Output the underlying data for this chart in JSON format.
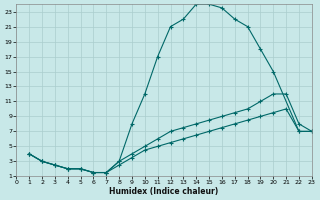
{
  "xlabel": "Humidex (Indice chaleur)",
  "xlim": [
    0,
    23
  ],
  "ylim": [
    1,
    24
  ],
  "xticks": [
    0,
    1,
    2,
    3,
    4,
    5,
    6,
    7,
    8,
    9,
    10,
    11,
    12,
    13,
    14,
    15,
    16,
    17,
    18,
    19,
    20,
    21,
    22,
    23
  ],
  "yticks": [
    1,
    3,
    5,
    7,
    9,
    11,
    13,
    15,
    17,
    19,
    21,
    23
  ],
  "bg_color": "#c8e8e8",
  "grid_color": "#aacece",
  "line_color": "#006868",
  "line1_x": [
    1,
    2,
    3,
    4,
    5,
    6,
    7,
    8,
    9,
    10,
    11,
    12,
    13,
    14,
    15,
    16,
    17,
    18,
    19,
    20,
    22,
    23
  ],
  "line1_y": [
    4,
    3,
    2.5,
    2,
    2,
    1.5,
    1.5,
    3,
    8,
    12,
    17,
    21,
    22,
    24,
    24,
    23.5,
    22,
    21,
    18,
    15,
    7,
    7
  ],
  "line2_x": [
    1,
    2,
    3,
    4,
    5,
    6,
    7,
    8,
    9,
    10,
    11,
    12,
    13,
    14,
    15,
    16,
    17,
    18,
    19,
    20,
    21,
    22,
    23
  ],
  "line2_y": [
    4,
    3,
    2.5,
    2,
    2,
    1.5,
    1.5,
    3,
    4,
    5,
    6,
    7,
    7.5,
    8,
    8.5,
    9,
    9.5,
    10,
    11,
    12,
    12,
    8,
    7
  ],
  "line3_x": [
    1,
    2,
    3,
    4,
    5,
    6,
    7,
    8,
    9,
    10,
    11,
    12,
    13,
    14,
    15,
    16,
    17,
    18,
    19,
    20,
    21,
    22,
    23
  ],
  "line3_y": [
    4,
    3,
    2.5,
    2,
    2,
    1.5,
    1.5,
    2.5,
    3.5,
    4.5,
    5,
    5.5,
    6,
    6.5,
    7,
    7.5,
    8,
    8.5,
    9,
    9.5,
    10,
    7,
    7
  ]
}
